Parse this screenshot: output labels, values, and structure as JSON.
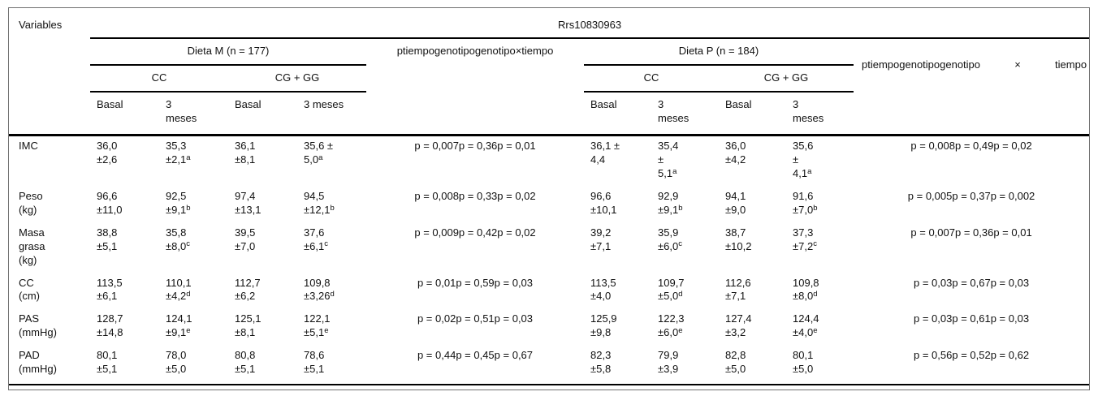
{
  "table": {
    "variables_header": "Variables",
    "snp_header": "Rrs10830963",
    "diet_m": {
      "label": "Dieta M (n = 177)",
      "genotypes": [
        "CC",
        "CG + GG"
      ],
      "times": [
        "Basal",
        "3\nmeses",
        "Basal",
        "3 meses"
      ]
    },
    "p_header_m": "ptiempogenotipogenotipo×tiempo",
    "diet_p": {
      "label": "Dieta P (n = 184)",
      "genotypes": [
        "CC",
        "CG + GG"
      ],
      "times": [
        "Basal",
        "3\nmeses",
        "Basal",
        "3\nmeses"
      ]
    },
    "p_header_p_parts": [
      "ptiempogenotipogenotipo",
      "×",
      "tiempo"
    ],
    "rows": [
      {
        "variable": "IMC",
        "m": [
          "36,0\n±2,6",
          "35,3\n±2,1^a",
          "36,1\n±8,1",
          "35,6 ±\n5,0^a"
        ],
        "p_m": "p = 0,007p = 0,36p = 0,01",
        "p": [
          "36,1 ±\n4,4",
          "35,4\n±\n5,1^a",
          "36,0\n±4,2",
          "35,6\n±\n4,1^a"
        ],
        "p_p": "p = 0,008p = 0,49p = 0,02"
      },
      {
        "variable": "Peso\n(kg)",
        "m": [
          "96,6\n±11,0",
          "92,5\n±9,1^b",
          "97,4\n±13,1",
          "94,5\n±12,1^b"
        ],
        "p_m": "p = 0,008p = 0,33p = 0,02",
        "p": [
          "96,6\n±10,1",
          "92,9\n±9,1^b",
          "94,1\n±9,0",
          "91,6\n±7,0^b"
        ],
        "p_p": "p = 0,005p = 0,37p = 0,002"
      },
      {
        "variable": "Masa\ngrasa\n(kg)",
        "m": [
          "38,8\n±5,1",
          "35,8\n±8,0^c",
          "39,5\n±7,0",
          "37,6\n±6,1^c"
        ],
        "p_m": "p = 0,009p = 0,42p = 0,02",
        "p": [
          "39,2\n±7,1",
          "35,9\n±6,0^c",
          "38,7\n±10,2",
          "37,3\n±7,2^c"
        ],
        "p_p": "p = 0,007p = 0,36p = 0,01"
      },
      {
        "variable": "CC\n(cm)",
        "m": [
          "113,5\n±6,1",
          "110,1\n±4,2^d",
          "112,7\n±6,2",
          "109,8\n±3,26^d"
        ],
        "p_m": "p = 0,01p = 0,59p = 0,03",
        "p": [
          "113,5\n±4,0",
          "109,7\n±5,0^d",
          "112,6\n±7,1",
          "109,8\n±8,0^d"
        ],
        "p_p": "p = 0,03p = 0,67p = 0,03"
      },
      {
        "variable": "PAS\n(mmHg)",
        "m": [
          "128,7\n±14,8",
          "124,1\n±9,1^e",
          "125,1\n±8,1",
          "122,1\n±5,1^e"
        ],
        "p_m": "p = 0,02p = 0,51p = 0,03",
        "p": [
          "125,9\n±9,8",
          "122,3\n±6,0^e",
          "127,4\n±3,2",
          "124,4\n±4,0^e"
        ],
        "p_p": "p = 0,03p = 0,61p = 0,03"
      },
      {
        "variable": "PAD\n(mmHg)",
        "m": [
          "80,1\n±5,1",
          "78,0\n±5,0",
          "80,8\n±5,1",
          "78,6\n±5,1"
        ],
        "p_m": "p = 0,44p = 0,45p = 0,67",
        "p": [
          "82,3\n±5,8",
          "79,9\n±3,9",
          "82,8\n±5,0",
          "80,1\n±5,0"
        ],
        "p_p": "p = 0,56p = 0,52p = 0,62"
      }
    ]
  },
  "colors": {
    "text": "#111111",
    "rule": "#000000",
    "frame_border": "#707070",
    "background": "#ffffff"
  }
}
